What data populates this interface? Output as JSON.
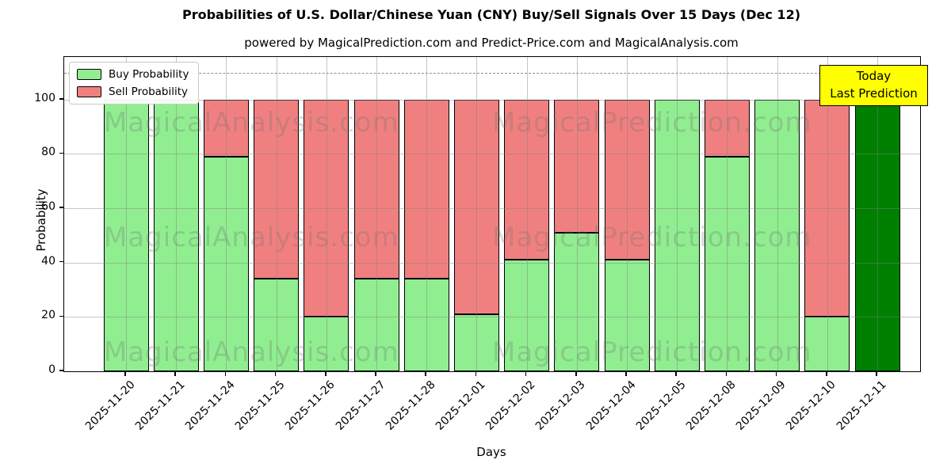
{
  "title": "Probabilities of U.S. Dollar/Chinese Yuan (CNY) Buy/Sell Signals Over 15 Days (Dec 12)",
  "subtitle": "powered by MagicalPrediction.com and Predict-Price.com and MagicalAnalysis.com",
  "axes": {
    "xlabel": "Days",
    "ylabel": "Probability"
  },
  "legend": {
    "items": [
      {
        "label": "Buy Probability",
        "color": "#90ee90"
      },
      {
        "label": "Sell Probability",
        "color": "#f08080"
      }
    ]
  },
  "annotation": {
    "lines": [
      "Today",
      "Last Prediction"
    ],
    "bg": "#ffff00"
  },
  "watermarks": {
    "left": "MagicalAnalysis.com",
    "right": "MagicalPrediction.com"
  },
  "colors": {
    "buy": "#90ee90",
    "sell": "#f08080",
    "today_bar": "#008000",
    "bar_edge": "#000000",
    "annotation_bg": "#ffff00"
  },
  "chart_data": {
    "type": "bar",
    "stacked": true,
    "title": "Probabilities of U.S. Dollar/Chinese Yuan (CNY) Buy/Sell Signals Over 15 Days (Dec 12)",
    "xlabel": "Days",
    "ylabel": "Probability",
    "categories": [
      "2025-11-20",
      "2025-11-21",
      "2025-11-24",
      "2025-11-25",
      "2025-11-26",
      "2025-11-27",
      "2025-11-28",
      "2025-12-01",
      "2025-12-02",
      "2025-12-03",
      "2025-12-04",
      "2025-12-05",
      "2025-12-08",
      "2025-12-09",
      "2025-12-10",
      "2025-12-11"
    ],
    "series": [
      {
        "name": "Buy Probability",
        "color": "#90ee90",
        "values": [
          100,
          100,
          79,
          34,
          20,
          34,
          34,
          21,
          41,
          51,
          41,
          100,
          79,
          100,
          20,
          100
        ]
      },
      {
        "name": "Sell Probability",
        "color": "#f08080",
        "values": [
          0,
          0,
          21,
          66,
          80,
          66,
          66,
          79,
          59,
          49,
          59,
          0,
          21,
          0,
          80,
          0
        ]
      }
    ],
    "today_bar_index": 15,
    "today_bar_color": "#008000",
    "yticks": [
      0,
      20,
      40,
      60,
      80,
      100
    ],
    "ylim": [
      0,
      115.7
    ],
    "dashed_line_y": 110,
    "grid": true,
    "legend_position": "upper left"
  }
}
